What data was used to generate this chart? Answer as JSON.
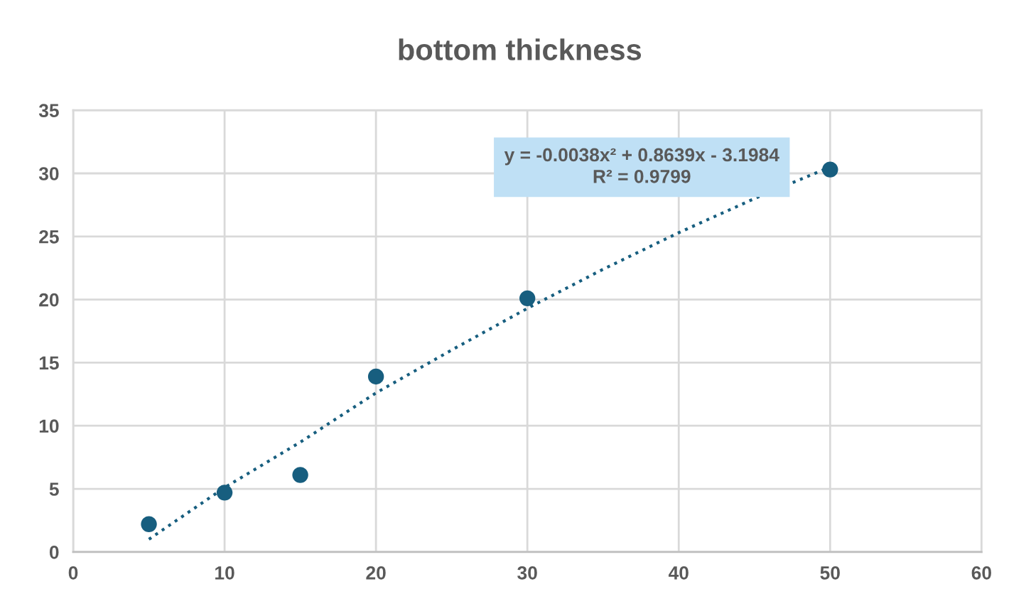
{
  "chart_data": {
    "type": "scatter",
    "title": "bottom thickness",
    "series": [
      {
        "color": "#175e7f",
        "x": [
          5,
          10,
          15,
          20,
          30,
          50
        ],
        "values": [
          2.2,
          4.7,
          6.1,
          13.9,
          20.1,
          30.3
        ],
        "marker": "circle"
      },
      {
        "type": "line",
        "color": "#175e7f",
        "x": [
          5,
          10,
          15,
          20,
          25,
          30,
          35,
          40,
          45,
          50
        ],
        "values": [
          1.0,
          5.1,
          8.7,
          12.6,
          16.0,
          19.3,
          22.4,
          25.3,
          28.0,
          30.5
        ],
        "line_style": "dotted",
        "marker": "none"
      }
    ],
    "annotations": [
      "y = -0.0038x² + 0.8639x - 3.1984\nR² = 0.9799"
    ],
    "xlim": [
      0,
      60
    ],
    "xticks": [
      0,
      10,
      20,
      30,
      40,
      50,
      60
    ],
    "ylim": [
      0,
      35
    ],
    "yticks": [
      0,
      5,
      10,
      15,
      20,
      25,
      30,
      35
    ],
    "grid": true,
    "legend": false
  }
}
